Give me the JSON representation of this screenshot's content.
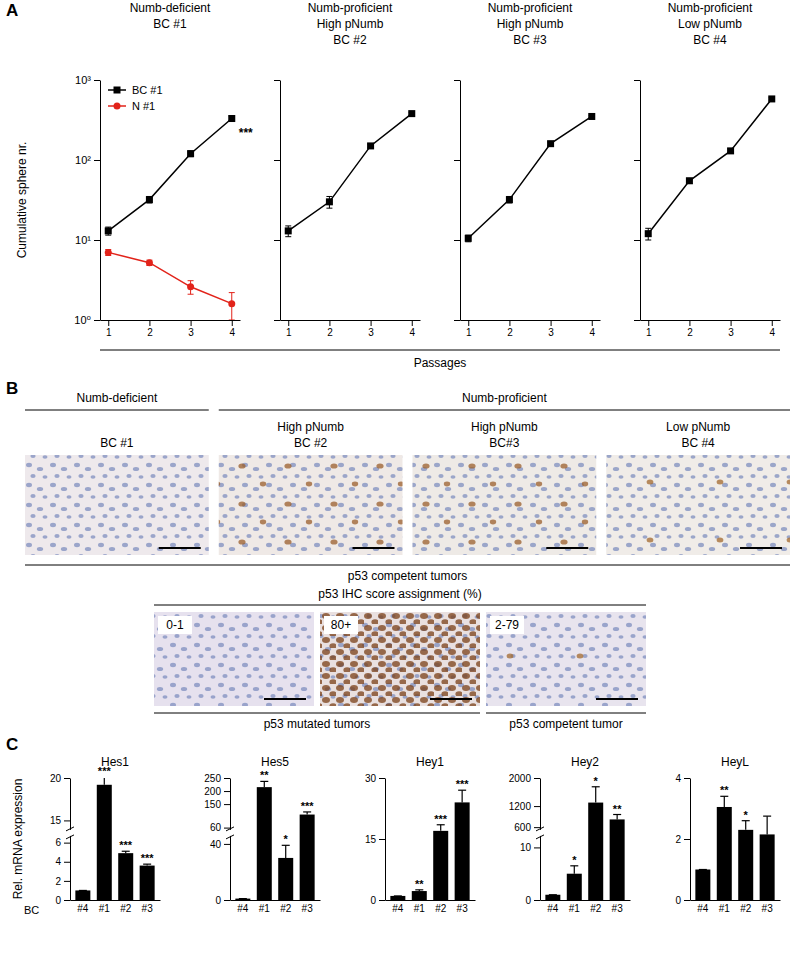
{
  "figure": {
    "panel_labels": [
      "A",
      "B",
      "C"
    ]
  },
  "panel_a": {
    "x_label": "Passages"
  },
  "panel_b": {
    "top_row": {
      "groups": [
        "Numb-deficient",
        "Numb-proficient"
      ],
      "images": [
        {
          "group": 0,
          "label": [
            "BC #1"
          ]
        },
        {
          "group": 1,
          "label": [
            "High pNumb",
            "BC #2"
          ]
        },
        {
          "group": 1,
          "label": [
            "High pNumb",
            "BC#3"
          ]
        },
        {
          "group": 1,
          "label": [
            "Low pNumb",
            "BC #4"
          ]
        }
      ],
      "caption": "p53 competent tumors"
    },
    "bottom_row": {
      "header": "p53 IHC score assignment (%)",
      "images": [
        {
          "label": "0-1",
          "caption": 0
        },
        {
          "label": "80+",
          "caption": 0
        },
        {
          "label": "2-79",
          "caption": 1
        }
      ],
      "captions": [
        "p53 mutated tumors",
        "p53 competent tumor"
      ]
    }
  },
  "chart_data": [
    {
      "type": "line",
      "title": [
        "Numb-deficient",
        "BC #1"
      ],
      "y_label": "Cumulative sphere nr.",
      "x": [
        1,
        2,
        3,
        4
      ],
      "xlim": [
        0.8,
        4.2
      ],
      "xticks": [
        1,
        2,
        3,
        4
      ],
      "ylim": [
        1,
        1000
      ],
      "yticks": [
        {
          "value": 1,
          "label": "10⁰"
        },
        {
          "value": 10,
          "label": "10¹"
        },
        {
          "value": 100,
          "label": "10²"
        },
        {
          "value": 1000,
          "label": "10³"
        }
      ],
      "log": "y",
      "legend": "upper left",
      "annotations": [
        "***"
      ],
      "series": [
        {
          "name": "BC #1",
          "color": "#000000",
          "marker": "square",
          "values": [
            13,
            32,
            120,
            330
          ],
          "errors": [
            1.5,
            3,
            10,
            25
          ]
        },
        {
          "name": "N #1",
          "color": "#e2231a",
          "marker": "circle",
          "values": [
            7,
            5.2,
            2.6,
            1.6
          ],
          "errors": [
            0.6,
            0.4,
            0.5,
            0.6
          ]
        }
      ]
    },
    {
      "type": "line",
      "title": [
        "Numb-proficient",
        "High pNumb",
        "BC #2"
      ],
      "x": [
        1,
        2,
        3,
        4
      ],
      "xlim": [
        0.8,
        4.2
      ],
      "xticks": [
        1,
        2,
        3,
        4
      ],
      "ylim": [
        1,
        1000
      ],
      "yticks": [
        {
          "value": 1,
          "label": "10⁰"
        },
        {
          "value": 10,
          "label": "10¹"
        },
        {
          "value": 100,
          "label": "10²"
        },
        {
          "value": 1000,
          "label": "10³"
        }
      ],
      "log": "y",
      "tick_labels": "x",
      "series": [
        {
          "color": "#000000",
          "marker": "square",
          "values": [
            13,
            30,
            150,
            380
          ],
          "errors": [
            2,
            5,
            8,
            15
          ]
        }
      ]
    },
    {
      "type": "line",
      "title": [
        "Numb-proficient",
        "High pNumb",
        "BC #3"
      ],
      "x": [
        1,
        2,
        3,
        4
      ],
      "xlim": [
        0.8,
        4.2
      ],
      "xticks": [
        1,
        2,
        3,
        4
      ],
      "ylim": [
        1,
        1000
      ],
      "yticks": [
        {
          "value": 1,
          "label": "10⁰"
        },
        {
          "value": 10,
          "label": "10¹"
        },
        {
          "value": 100,
          "label": "10²"
        },
        {
          "value": 1000,
          "label": "10³"
        }
      ],
      "log": "y",
      "tick_labels": "x",
      "series": [
        {
          "color": "#000000",
          "marker": "square",
          "values": [
            10.5,
            32,
            160,
            350
          ],
          "errors": [
            1,
            3,
            8,
            12
          ]
        }
      ]
    },
    {
      "type": "line",
      "title": [
        "Numb-proficient",
        "Low pNumb",
        "BC #4"
      ],
      "x": [
        1,
        2,
        3,
        4
      ],
      "xlim": [
        0.8,
        4.2
      ],
      "xticks": [
        1,
        2,
        3,
        4
      ],
      "ylim": [
        1,
        1000
      ],
      "yticks": [
        {
          "value": 1,
          "label": "10⁰"
        },
        {
          "value": 10,
          "label": "10¹"
        },
        {
          "value": 100,
          "label": "10²"
        },
        {
          "value": 1000,
          "label": "10³"
        }
      ],
      "log": "y",
      "tick_labels": "x",
      "series": [
        {
          "color": "#000000",
          "marker": "square",
          "values": [
            12,
            55,
            130,
            580
          ],
          "errors": [
            2,
            4,
            8,
            20
          ]
        }
      ]
    },
    {
      "type": "bar",
      "title": "Hes1",
      "y_label": "Rel. mRNA expression",
      "x_label": "BC",
      "categories": [
        "#4",
        "#1",
        "#2",
        "#3"
      ],
      "values": [
        1,
        19.2,
        4.9,
        3.6
      ],
      "errors": [
        0,
        0.9,
        0.2,
        0.15
      ],
      "annotations": [
        null,
        "***",
        "***",
        "***"
      ],
      "color": "#000000",
      "ylim": [
        0,
        20
      ],
      "ybreak": [
        6.6,
        14
      ],
      "yticks": [
        0,
        2,
        4,
        6,
        15,
        20
      ]
    },
    {
      "type": "bar",
      "title": "Hes5",
      "categories": [
        "#4",
        "#1",
        "#2",
        "#3"
      ],
      "values": [
        1,
        215,
        30,
        110
      ],
      "errors": [
        0,
        22,
        9,
        10
      ],
      "annotations": [
        null,
        "**",
        "*",
        "***"
      ],
      "color": "#000000",
      "ylim": [
        0,
        250
      ],
      "ybreak": [
        45,
        55
      ],
      "yticks": [
        0,
        40,
        60,
        150,
        200,
        250
      ]
    },
    {
      "type": "bar",
      "title": "Hey1",
      "categories": [
        "#4",
        "#1",
        "#2",
        "#3"
      ],
      "values": [
        1,
        2.2,
        17,
        24
      ],
      "errors": [
        0,
        0.3,
        1.5,
        3
      ],
      "annotations": [
        null,
        "**",
        "***",
        "***"
      ],
      "color": "#000000",
      "ylim": [
        0,
        30
      ],
      "yticks": [
        0,
        15,
        30
      ]
    },
    {
      "type": "bar",
      "title": "Hey2",
      "categories": [
        "#4",
        "#1",
        "#2",
        "#3"
      ],
      "values": [
        1,
        5,
        1300,
        820
      ],
      "errors": [
        0,
        1.5,
        450,
        140
      ],
      "annotations": [
        null,
        "*",
        "*",
        "**"
      ],
      "color": "#000000",
      "ylim": [
        0,
        2000
      ],
      "ybreak": [
        12,
        550
      ],
      "yticks": [
        0,
        10,
        600,
        1200,
        2000
      ]
    },
    {
      "type": "bar",
      "title": "HeyL",
      "categories": [
        "#4",
        "#1",
        "#2",
        "#3"
      ],
      "values": [
        1,
        3.05,
        2.3,
        2.15
      ],
      "errors": [
        0,
        0.35,
        0.3,
        0.6
      ],
      "annotations": [
        null,
        "**",
        "*",
        null
      ],
      "color": "#000000",
      "ylim": [
        0,
        4
      ],
      "yticks": [
        0,
        2,
        4
      ]
    }
  ]
}
